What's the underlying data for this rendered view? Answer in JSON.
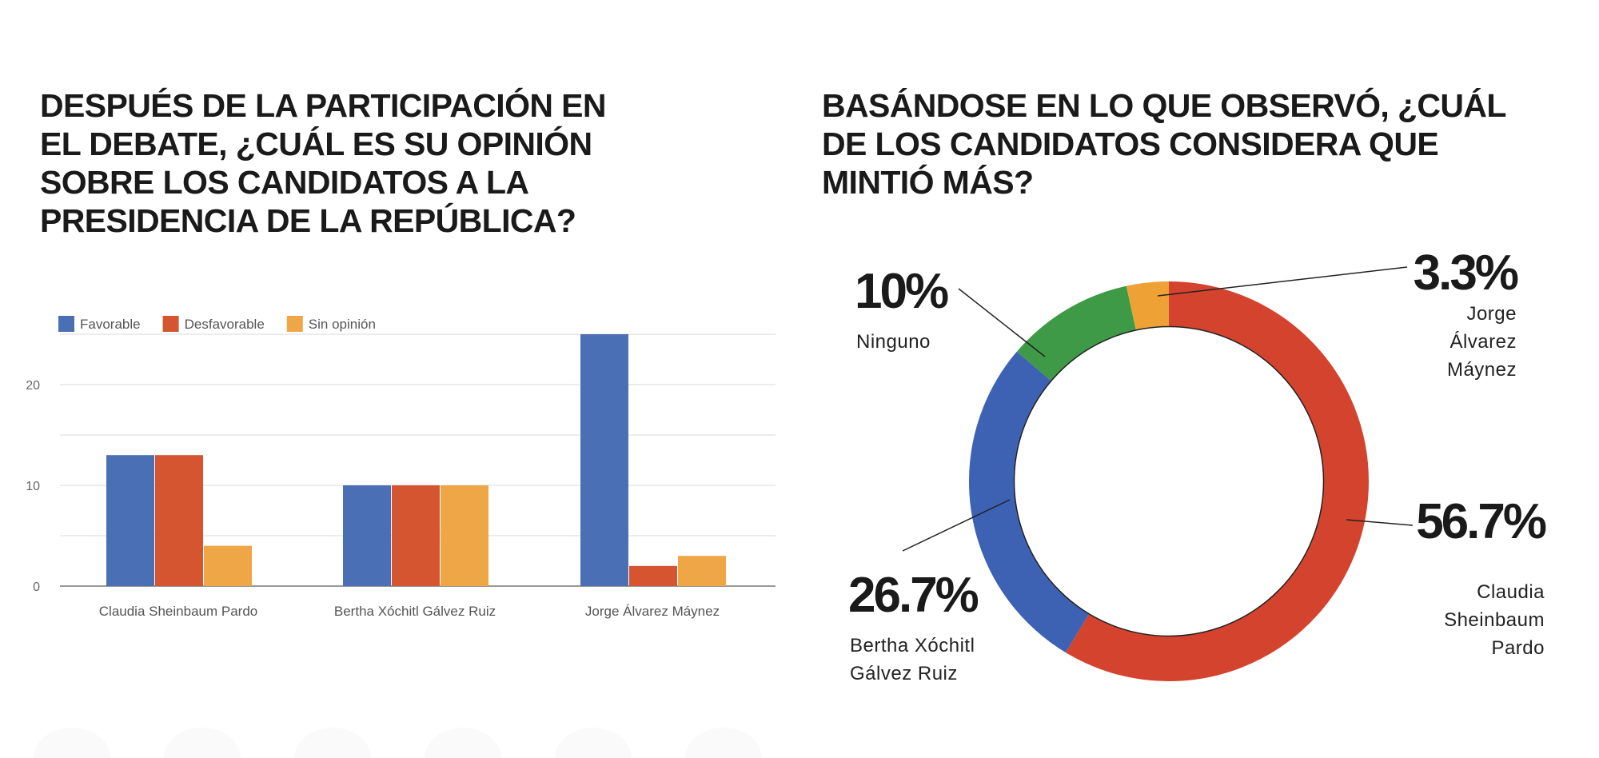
{
  "titles": {
    "left": [
      "DESPUÉS DE LA PARTICIPACIÓN EN",
      "EL DEBATE, ¿CUÁL ES SU OPINIÓN",
      "SOBRE LOS CANDIDATOS A LA",
      "PRESIDENCIA DE LA REPÚBLICA?"
    ],
    "right": [
      "BASÁNDOSE EN LO QUE OBSERVÓ, ¿CUÁL",
      "DE LOS CANDIDATOS CONSIDERA QUE",
      "MINTIÓ MÁS?"
    ]
  },
  "chart_data": [
    {
      "type": "bar",
      "categories": [
        "Claudia Sheinbaum Pardo",
        "Bertha Xóchitl Gálvez Ruiz",
        "Jorge Álvarez Máynez"
      ],
      "series": [
        {
          "name": "Favorable",
          "values": [
            13,
            10,
            25
          ],
          "color": "#4a6fb5"
        },
        {
          "name": "Desfavorable",
          "values": [
            13,
            10,
            2
          ],
          "color": "#d4552f"
        },
        {
          "name": "Sin opinión",
          "values": [
            4,
            10,
            3
          ],
          "color": "#eea646"
        }
      ],
      "yticks": [
        "0",
        "10",
        "20"
      ],
      "ytick_values": [
        0,
        10,
        20
      ],
      "grid_step": 5,
      "ylim": [
        0,
        25
      ],
      "grid": true,
      "legend": "top-left"
    },
    {
      "type": "pie",
      "donut": true,
      "slices": [
        {
          "label": "Claudia Sheinbaum Pardo",
          "label_lines": [
            "Claudia",
            "Sheinbaum",
            "Pardo"
          ],
          "value": 56.7,
          "text": "56.7%",
          "color": "#d4432e"
        },
        {
          "label": "Bertha Xóchitl Gálvez Ruiz",
          "label_lines": [
            "Bertha Xóchitl",
            "Gálvez Ruiz"
          ],
          "value": 26.7,
          "text": "26.7%",
          "color": "#3d62b3"
        },
        {
          "label": "Ninguno",
          "label_lines": [
            "Ninguno"
          ],
          "value": 10,
          "text": "10%",
          "color": "#3f9a48"
        },
        {
          "label": "Jorge Álvarez Máynez",
          "label_lines": [
            "Jorge",
            "Álvarez",
            "Máynez"
          ],
          "value": 3.3,
          "text": "3.3%",
          "color": "#eea236"
        }
      ]
    }
  ]
}
